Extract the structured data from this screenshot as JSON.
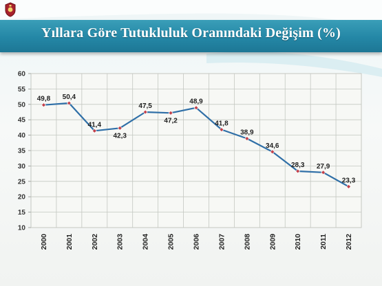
{
  "slide": {
    "title": "Yıllara Göre Tutukluluk Oranındaki Değişim (%)",
    "colors": {
      "title_bar": "#2487a6",
      "line": "#2f6fa7",
      "marker": "#c2414b"
    },
    "logo_icon": "emblem-icon"
  },
  "chart_data": {
    "type": "line",
    "title": "Yıllara Göre Tutukluluk Oranındaki Değişim (%)",
    "xlabel": "",
    "ylabel": "",
    "categories": [
      "2000",
      "2001",
      "2002",
      "2003",
      "2004",
      "2005",
      "2006",
      "2007",
      "2008",
      "2009",
      "2010",
      "2011",
      "2012"
    ],
    "series": [
      {
        "values": [
          49.8,
          50.4,
          41.4,
          42.3,
          47.5,
          47.2,
          48.9,
          41.8,
          38.9,
          34.6,
          28.3,
          27.9,
          23.3
        ],
        "labels": [
          "49,8",
          "50,4",
          "41,4",
          "42,3",
          "47,5",
          "47,2",
          "48,9",
          "41,8",
          "38,9",
          "34,6",
          "28,3",
          "27,9",
          "23,3"
        ]
      }
    ],
    "ylim": [
      10,
      60
    ],
    "yticks": [
      10,
      15,
      20,
      25,
      30,
      35,
      40,
      45,
      50,
      55,
      60
    ],
    "grid": true,
    "legend": "none"
  }
}
